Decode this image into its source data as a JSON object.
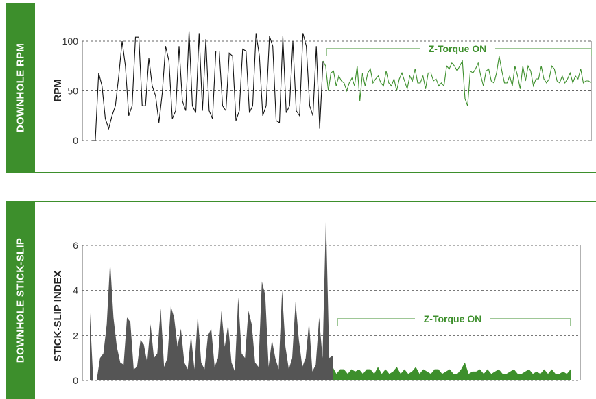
{
  "colors": {
    "accent": "#3d8f2c",
    "before": "#111111",
    "after": "#3d8f2c",
    "area_before": "#555555",
    "area_after": "#3d8f2c",
    "grid": "#666666"
  },
  "panels": {
    "top": {
      "side_label": "DOWNHOLE RPM"
    },
    "bottom": {
      "side_label": "DOWNHOLE STICK-SLIP"
    }
  },
  "chart_data": [
    {
      "type": "line",
      "ylabel": "RPM",
      "ylim": [
        0,
        100
      ],
      "yticks": [
        0,
        50,
        100
      ],
      "grid": "dashed horizontal",
      "annotation": "Z-Torque ON",
      "series": [
        {
          "values": [
            0,
            0,
            68,
            55,
            22,
            12,
            25,
            35,
            65,
            100,
            75,
            25,
            35,
            104,
            104,
            35,
            35,
            83,
            55,
            45,
            18,
            48,
            95,
            80,
            22,
            30,
            95,
            40,
            30,
            110,
            35,
            28,
            108,
            30,
            102,
            30,
            22,
            90,
            90,
            35,
            30,
            88,
            85,
            20,
            30,
            92,
            90,
            28,
            35,
            108,
            85,
            25,
            35,
            105,
            95,
            20,
            18,
            105,
            28,
            35,
            100,
            30,
            25,
            108,
            95,
            35,
            25,
            95,
            12,
            80
          ]
        },
        {
          "values": [
            80,
            75,
            50,
            68,
            70,
            55,
            65,
            60,
            58,
            50,
            58,
            63,
            55,
            75,
            40,
            68,
            55,
            68,
            72,
            58,
            62,
            65,
            58,
            55,
            70,
            58,
            55,
            62,
            50,
            62,
            68,
            60,
            52,
            65,
            60,
            72,
            58,
            58,
            65,
            52,
            68,
            68,
            60,
            62,
            55,
            58,
            55,
            75,
            72,
            78,
            75,
            70,
            75,
            80,
            42,
            35,
            70,
            68,
            72,
            78,
            65,
            55,
            70,
            72,
            60,
            58,
            68,
            85,
            70,
            58,
            58,
            65,
            55,
            75,
            65,
            52,
            75,
            60,
            75,
            70,
            55,
            62,
            62,
            75,
            62,
            58,
            62,
            75,
            72,
            60,
            58,
            65,
            58,
            62,
            68,
            58,
            65,
            62,
            72,
            58,
            60,
            60,
            58
          ]
        }
      ]
    },
    {
      "type": "area",
      "ylabel": "STICK-SLIP INDEX",
      "ylim": [
        0,
        6
      ],
      "yticks": [
        0,
        2,
        4,
        6
      ],
      "grid": "dashed horizontal",
      "annotation": "Z-Torque ON",
      "series": [
        {
          "values": [
            3.0,
            0.0,
            0.0,
            1.0,
            1.2,
            2.5,
            5.3,
            2.8,
            1.5,
            0.8,
            0.7,
            2.8,
            2.6,
            0.5,
            0.6,
            1.8,
            1.6,
            0.8,
            2.5,
            1.0,
            1.2,
            3.2,
            0.6,
            1.0,
            3.3,
            2.8,
            1.5,
            2.3,
            0.8,
            0.5,
            2.0,
            0.5,
            2.9,
            0.8,
            0.5,
            2.0,
            2.3,
            0.6,
            1.0,
            3.1,
            1.5,
            2.5,
            0.8,
            0.4,
            3.7,
            1.2,
            1.0,
            3.1,
            2.5,
            0.8,
            0.6,
            4.4,
            3.8,
            0.6,
            1.8,
            1.0,
            0.5,
            4.0,
            1.5,
            0.5,
            1.0,
            3.5,
            1.8,
            0.6,
            1.0,
            2.6,
            0.4,
            0.7,
            2.8,
            1.0,
            7.3,
            1.0,
            1.1
          ]
        },
        {
          "values": [
            0.6,
            0.3,
            0.5,
            0.5,
            0.3,
            0.5,
            0.4,
            0.5,
            0.3,
            0.5,
            0.5,
            0.3,
            0.6,
            0.3,
            0.5,
            0.3,
            0.4,
            0.6,
            0.3,
            0.5,
            0.3,
            0.4,
            0.6,
            0.3,
            0.5,
            0.4,
            0.3,
            0.5,
            0.5,
            0.3,
            0.4,
            0.5,
            0.3,
            0.3,
            0.5,
            0.8,
            0.3,
            0.4,
            0.4,
            0.5,
            0.3,
            0.5,
            0.3,
            0.4,
            0.5,
            0.3,
            0.3,
            0.4,
            0.5,
            0.3,
            0.3,
            0.4,
            0.5,
            0.3,
            0.4,
            0.3,
            0.5,
            0.3,
            0.5,
            0.3,
            0.3,
            0.4,
            0.3,
            0.5
          ]
        }
      ]
    }
  ]
}
